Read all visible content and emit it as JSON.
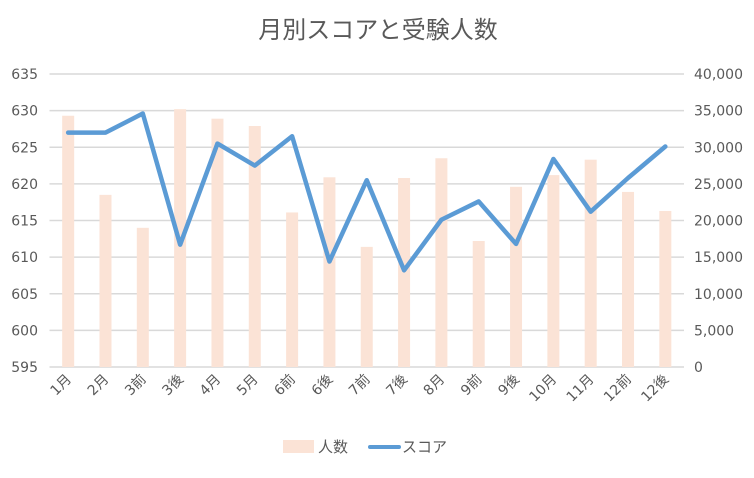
{
  "chart_data": {
    "type": "bar+line",
    "title": "月別スコアと受験人数",
    "categories": [
      "1月",
      "2月",
      "3前",
      "3後",
      "4月",
      "5月",
      "6前",
      "6後",
      "7前",
      "7後",
      "8月",
      "9前",
      "9後",
      "10月",
      "11月",
      "12前",
      "12後"
    ],
    "series": [
      {
        "name": "人数",
        "type": "bar",
        "axis": "right",
        "color": "#FBE3D6",
        "values": [
          34300,
          23500,
          19000,
          35200,
          33900,
          32900,
          21100,
          25900,
          16400,
          25800,
          28500,
          17200,
          24600,
          26200,
          28300,
          23900,
          21300
        ]
      },
      {
        "name": "スコア",
        "type": "line",
        "axis": "left",
        "color": "#5B9BD5",
        "values": [
          627.0,
          627.0,
          629.6,
          611.7,
          625.5,
          622.5,
          626.5,
          609.4,
          620.5,
          608.2,
          615.1,
          617.6,
          611.8,
          623.4,
          616.2,
          620.8,
          625.1
        ]
      }
    ],
    "left_axis": {
      "min": 595,
      "max": 635,
      "step": 5,
      "ticks": [
        "595",
        "600",
        "605",
        "610",
        "615",
        "620",
        "625",
        "630",
        "635"
      ]
    },
    "right_axis": {
      "min": 0,
      "max": 40000,
      "step": 5000,
      "ticks": [
        "0",
        "5,000",
        "10,000",
        "15,000",
        "20,000",
        "25,000",
        "30,000",
        "35,000",
        "40,000"
      ]
    },
    "grid": true,
    "legend_position": "bottom"
  }
}
